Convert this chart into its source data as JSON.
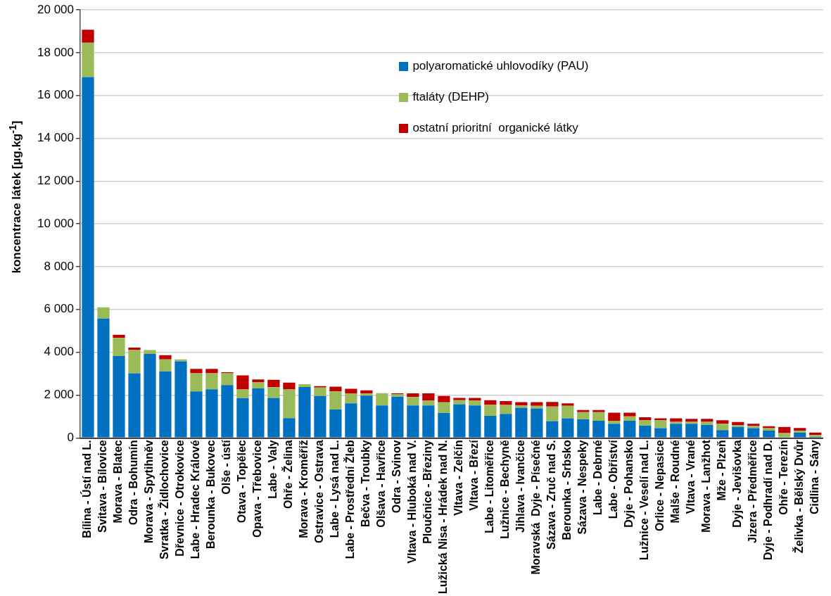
{
  "chart_data": {
    "type": "bar",
    "stacked": true,
    "ylabel": "koncentrace  látek [µg.kg$^{-1}$]",
    "categories": [
      "Bílina - Ústí nad L.",
      "Svitava - Bílovice",
      "Morava - Blatec",
      "Odra - Bohumín",
      "Morava - Spytihněv",
      "Svratka - Židlochovice",
      "Dřevnice - Otrokovice",
      "Labe - Hradec Králové",
      "Berounka - Bukovec",
      "Olše - ústí",
      "Otava - Topělec",
      "Opava - Třebovice",
      "Labe - Valy",
      "Ohře - Želina",
      "Morava - Kroměříž",
      "Ostravice - Ostrava",
      "Labe - Lysá nad L.",
      "Labe - Prostřední Žleb",
      "Bečva - Troubky",
      "Olšava - Havřice",
      "Odra - Svinov",
      "Vltava - Hluboká nad V.",
      "Ploučnice - Březiny",
      "Lužická Nisa - Hrádek nad N.",
      "Vltava - Zelčín",
      "Vltava - Březí",
      "Labe - Litoměřice",
      "Lužnice - Bechyně",
      "Jihlava - Ivančice",
      "Moravská  Dyje - Písečné",
      "Sázava - Zruč nad S.",
      "Berounka - Srbsko",
      "Sázava - Nespeky",
      "Labe - Debrné",
      "Labe - Obříství",
      "Dyje - Pohansko",
      "Lužnice - Veselí nad L.",
      "Orlice - Nepasice",
      "Malše - Roudné",
      "Vltava - Vrané",
      "Morava - Lanžhot",
      "Mže - Plzeň",
      "Dyje - Jevišovka",
      "Jizera - Předměřice",
      "Dyje - Podhradí nad D.",
      "Ohře - Terezín",
      "Želivka - Bělský Dvůr",
      "Cidlina - Sány"
    ],
    "series": [
      {
        "name": "polyaromatické uhlovodíky (PAU)",
        "color": "#0070c0",
        "values": [
          16860,
          5570,
          3820,
          3020,
          3920,
          3110,
          3580,
          2170,
          2270,
          2470,
          1860,
          2310,
          1870,
          920,
          2380,
          1960,
          1320,
          1610,
          1970,
          1510,
          1920,
          1510,
          1510,
          1170,
          1570,
          1510,
          1030,
          1120,
          1410,
          1370,
          780,
          910,
          860,
          800,
          660,
          800,
          570,
          450,
          660,
          660,
          610,
          360,
          510,
          450,
          340,
          null,
          240,
          50
        ]
      },
      {
        "name": "ftaláty (DEHP)",
        "color": "#9bbb59",
        "values": [
          1600,
          530,
          850,
          1080,
          180,
          560,
          90,
          850,
          750,
          550,
          400,
          300,
          500,
          1340,
          130,
          390,
          850,
          470,
          100,
          580,
          110,
          400,
          240,
          490,
          190,
          240,
          520,
          420,
          100,
          130,
          680,
          590,
          340,
          400,
          140,
          200,
          250,
          370,
          90,
          90,
          140,
          300,
          80,
          100,
          110,
          220,
          90,
          80
        ]
      },
      {
        "name": "ostatní prioritní  organické látky",
        "color": "#c00000",
        "values": [
          610,
          0,
          150,
          120,
          0,
          190,
          0,
          200,
          200,
          50,
          660,
          120,
          340,
          320,
          0,
          70,
          220,
          210,
          150,
          0,
          50,
          170,
          330,
          300,
          110,
          120,
          210,
          180,
          160,
          170,
          220,
          110,
          100,
          100,
          380,
          180,
          140,
          90,
          160,
          140,
          140,
          160,
          150,
          110,
          90,
          290,
          130,
          120
        ]
      }
    ],
    "ylim": [
      0,
      20000
    ],
    "yticks": [
      {
        "value": 0,
        "label": "0"
      },
      {
        "value": 2000,
        "label": "2 000"
      },
      {
        "value": 4000,
        "label": "4 000"
      },
      {
        "value": 6000,
        "label": "6 000"
      },
      {
        "value": 8000,
        "label": "8 000"
      },
      {
        "value": 10000,
        "label": "10 000"
      },
      {
        "value": 12000,
        "label": "12 000"
      },
      {
        "value": 14000,
        "label": "14 000"
      },
      {
        "value": 16000,
        "label": "16 000"
      },
      {
        "value": 18000,
        "label": "18 000"
      },
      {
        "value": 20000,
        "label": "20 000"
      }
    ],
    "grid": "y",
    "legend": "top"
  }
}
